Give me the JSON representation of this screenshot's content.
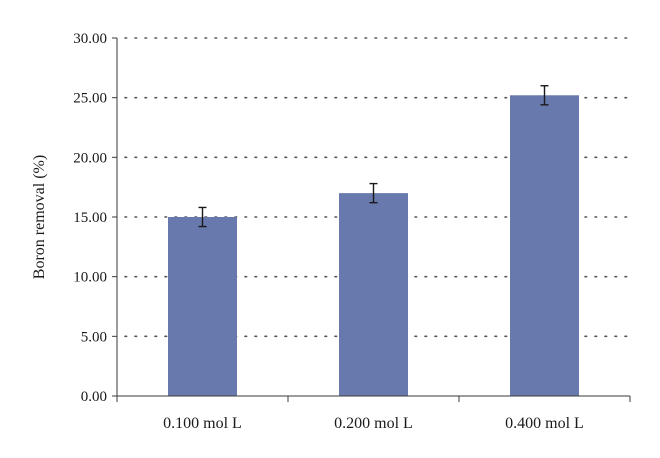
{
  "chart_data": {
    "type": "bar",
    "title": "",
    "xlabel": "",
    "ylabel": "Boron removal (%)",
    "categories": [
      "0.100 mol L",
      "0.200 mol L",
      "0.400 mol L"
    ],
    "values": [
      15.0,
      17.0,
      25.2
    ],
    "error": [
      0.8,
      0.8,
      0.8
    ],
    "ylim": [
      0,
      30
    ],
    "y_ticks": [
      "0.00",
      "5.00",
      "10.00",
      "15.00",
      "20.00",
      "25.00",
      "30.00"
    ],
    "grid": true,
    "grid_style": "dotted",
    "legend": "none",
    "colors": {
      "bar": "#6779ad",
      "axis": "#3a3a3a",
      "grid": "#555555",
      "error_bar": "#1a1a1a"
    }
  }
}
